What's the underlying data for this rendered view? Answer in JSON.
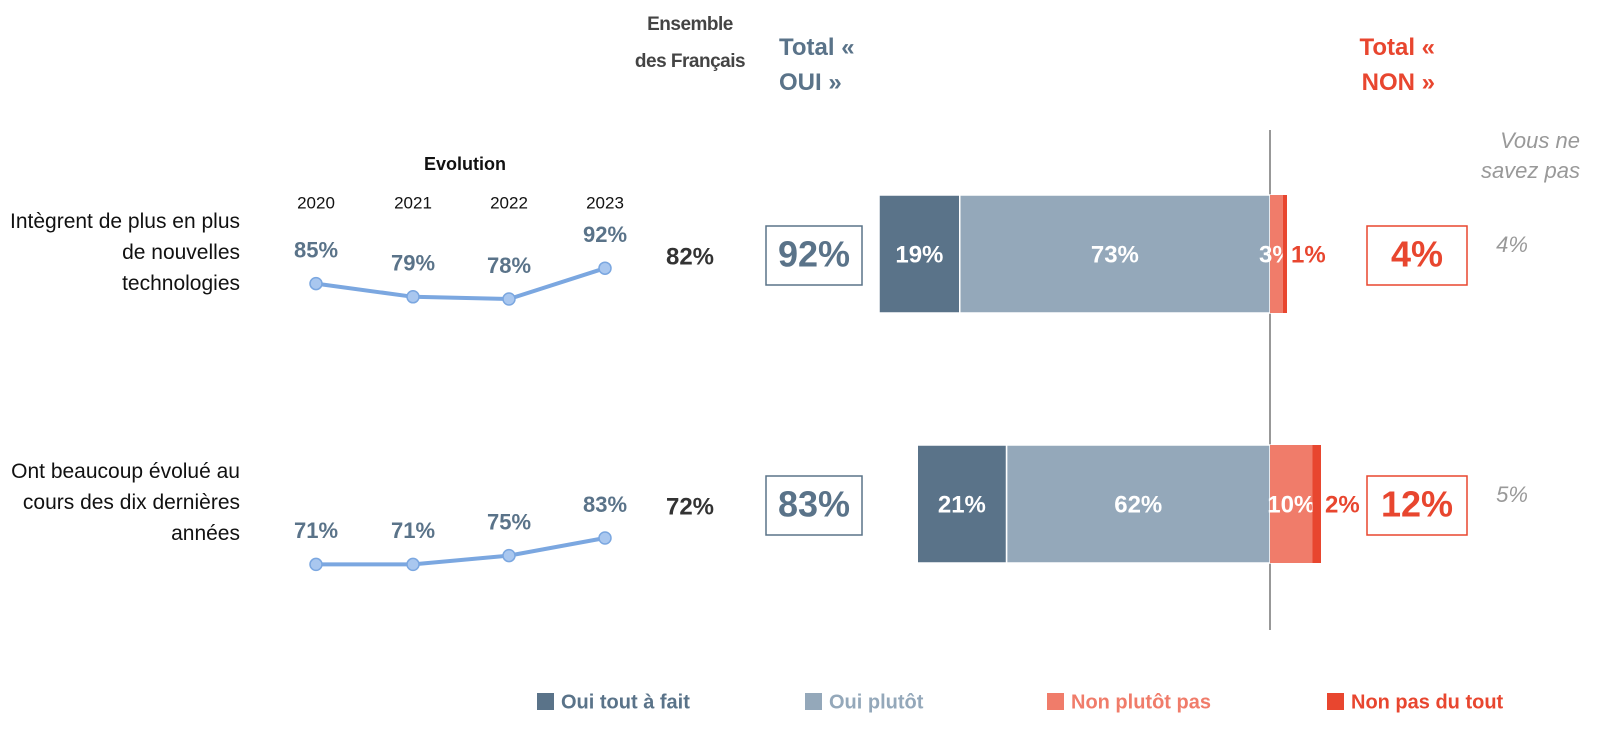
{
  "chart_data": {
    "type": "diverging_bar",
    "evolution_title": "Evolution",
    "years": [
      "2020",
      "2021",
      "2022",
      "2023"
    ],
    "ensemble_title": "Ensemble des Français",
    "total_yes_title": "Total « OUI »",
    "total_no_title": "Total « NON »",
    "dont_know_title": "Vous ne savez pas",
    "categories": [
      "Intègrent de plus en plus de nouvelles technologies",
      "Ont beaucoup évolué au cours des dix dernières années"
    ],
    "evolution": [
      [
        85,
        79,
        78,
        92
      ],
      [
        71,
        71,
        75,
        83
      ]
    ],
    "evolution_labels": [
      [
        "85%",
        "79%",
        "78%",
        "92%"
      ],
      [
        "71%",
        "71%",
        "75%",
        "83%"
      ]
    ],
    "evolution_color": "#7ba7e0",
    "ensemble": [
      82,
      72
    ],
    "ensemble_labels": [
      "82%",
      "72%"
    ],
    "total_yes": [
      92,
      83
    ],
    "total_yes_labels": [
      "92%",
      "83%"
    ],
    "total_no": [
      4,
      12
    ],
    "total_no_labels": [
      "4%",
      "12%"
    ],
    "dont_know": [
      4,
      5
    ],
    "dont_know_labels": [
      "4%",
      "5%"
    ],
    "series": [
      {
        "name": "Oui tout à fait",
        "color": "#5a7389",
        "side": "yes",
        "values": [
          19,
          21
        ],
        "value_labels": [
          "19%",
          "21%"
        ]
      },
      {
        "name": "Oui plutôt",
        "color": "#94a8ba",
        "side": "yes",
        "values": [
          73,
          62
        ],
        "value_labels": [
          "73%",
          "62%"
        ]
      },
      {
        "name": "Non plutôt pas",
        "color": "#f07c6a",
        "side": "no",
        "values": [
          3,
          10
        ],
        "value_labels": [
          "3%",
          "10%"
        ]
      },
      {
        "name": "Non pas du tout",
        "color": "#e8462f",
        "side": "no",
        "values": [
          1,
          2
        ],
        "value_labels": [
          "1%",
          "2%"
        ]
      }
    ]
  }
}
